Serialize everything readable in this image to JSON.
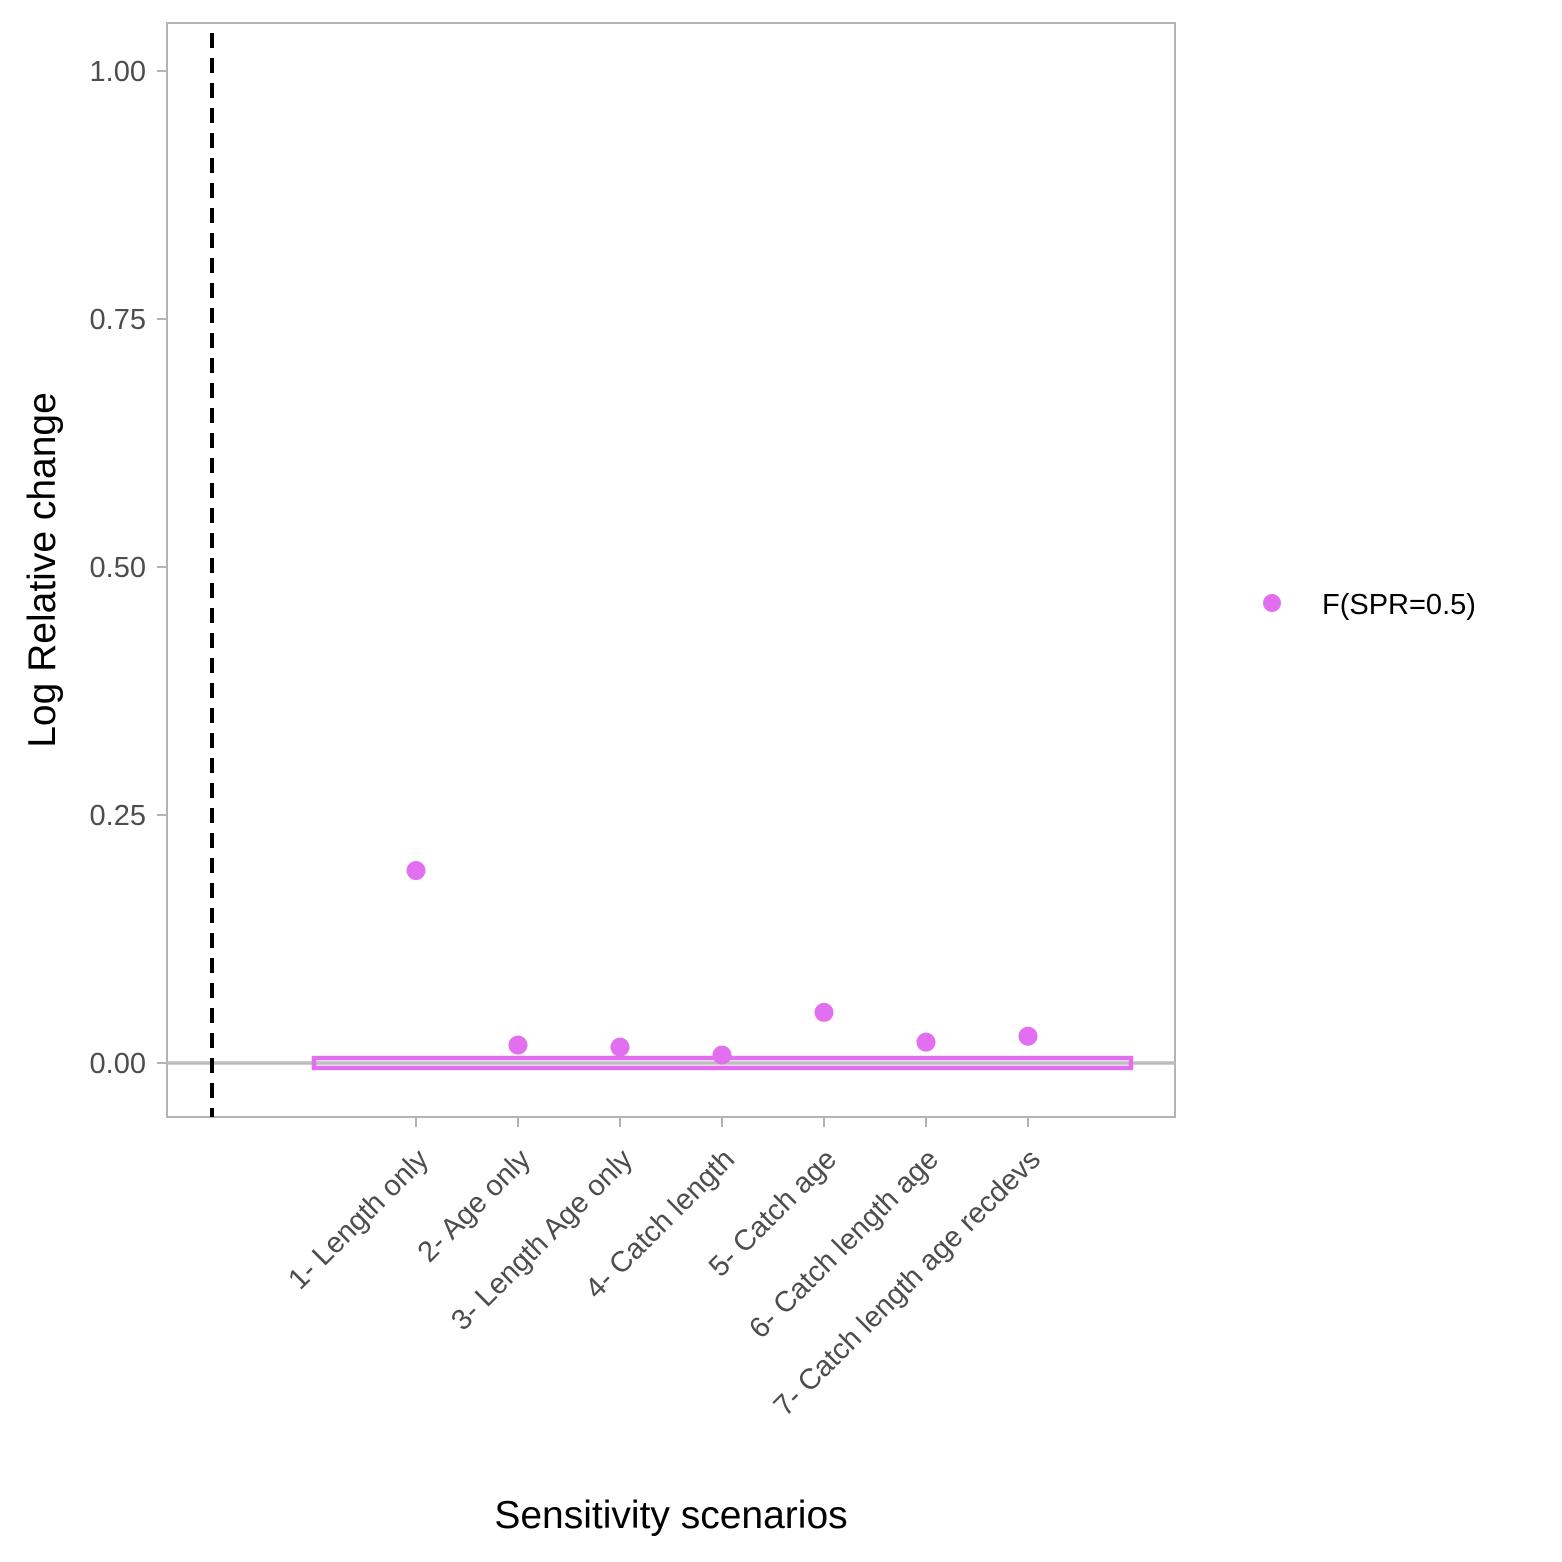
{
  "chart_data": {
    "type": "scatter",
    "xlabel": "Sensitivity scenarios",
    "ylabel": "Log Relative change",
    "categories": [
      "1- Length only",
      "2- Age only",
      "3- Length Age only",
      "4- Catch length",
      "5- Catch age",
      "6- Catch length age",
      "7- Catch length age recdevs"
    ],
    "series": [
      {
        "name": "F(SPR=0.5)",
        "color": "#e26ff0",
        "values": [
          0.194,
          0.018,
          0.016,
          0.008,
          0.051,
          0.021,
          0.027
        ]
      }
    ],
    "yticks": [
      "0.00",
      "0.25",
      "0.50",
      "0.75",
      "1.00"
    ],
    "ylim": [
      -0.055,
      1.055
    ],
    "reference_band": {
      "lower": -0.005,
      "upper": 0.005,
      "color": "#e26ff0"
    },
    "reference_line_y": 0,
    "grid": false,
    "legend_position": "right"
  }
}
